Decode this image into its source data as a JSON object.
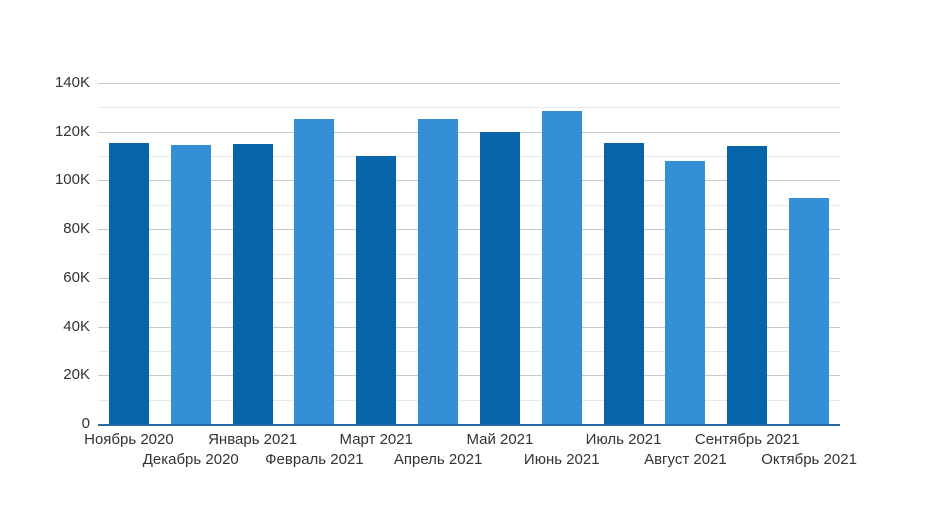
{
  "chart_data": {
    "type": "bar",
    "title": "",
    "xlabel": "",
    "ylabel": "",
    "categories": [
      "Ноябрь 2020",
      "Декабрь 2020",
      "Январь 2021",
      "Февраль 2021",
      "Март 2021",
      "Апрель 2021",
      "Май 2021",
      "Июнь 2021",
      "Июль 2021",
      "Август 2021",
      "Сентябрь 2021",
      "Октябрь 2021"
    ],
    "values": [
      115500,
      114400,
      114800,
      125200,
      110000,
      125300,
      120000,
      128300,
      115500,
      107800,
      114000,
      92600
    ],
    "bar_colors": [
      "#0864aa",
      "#3390d6",
      "#0864aa",
      "#3390d6",
      "#0864aa",
      "#3390d6",
      "#0864aa",
      "#3390d6",
      "#0864aa",
      "#3390d6",
      "#0864aa",
      "#3390d6"
    ],
    "ylim": [
      0,
      140000
    ],
    "y_ticks": [
      {
        "label": "140K",
        "value": 140000
      },
      {
        "label": "120K",
        "value": 120000
      },
      {
        "label": "100K",
        "value": 100000
      },
      {
        "label": "80K",
        "value": 80000
      },
      {
        "label": "60K",
        "value": 60000
      },
      {
        "label": "40K",
        "value": 40000
      },
      {
        "label": "20K",
        "value": 20000
      },
      {
        "label": "0",
        "value": 0
      }
    ],
    "minor_grid_step": 10000,
    "major_grid_step": 20000,
    "grid": "horizontal",
    "legend": "none",
    "x_label_layout": "staggered-two-rows"
  },
  "colors": {
    "background": "#ffffff",
    "bar_dark": "#0864aa",
    "bar_light": "#3390d6",
    "grid_major": "#c9c9c9",
    "grid_minor": "#eaeaea",
    "axis_line": "#2869a0",
    "text": "#333333"
  }
}
